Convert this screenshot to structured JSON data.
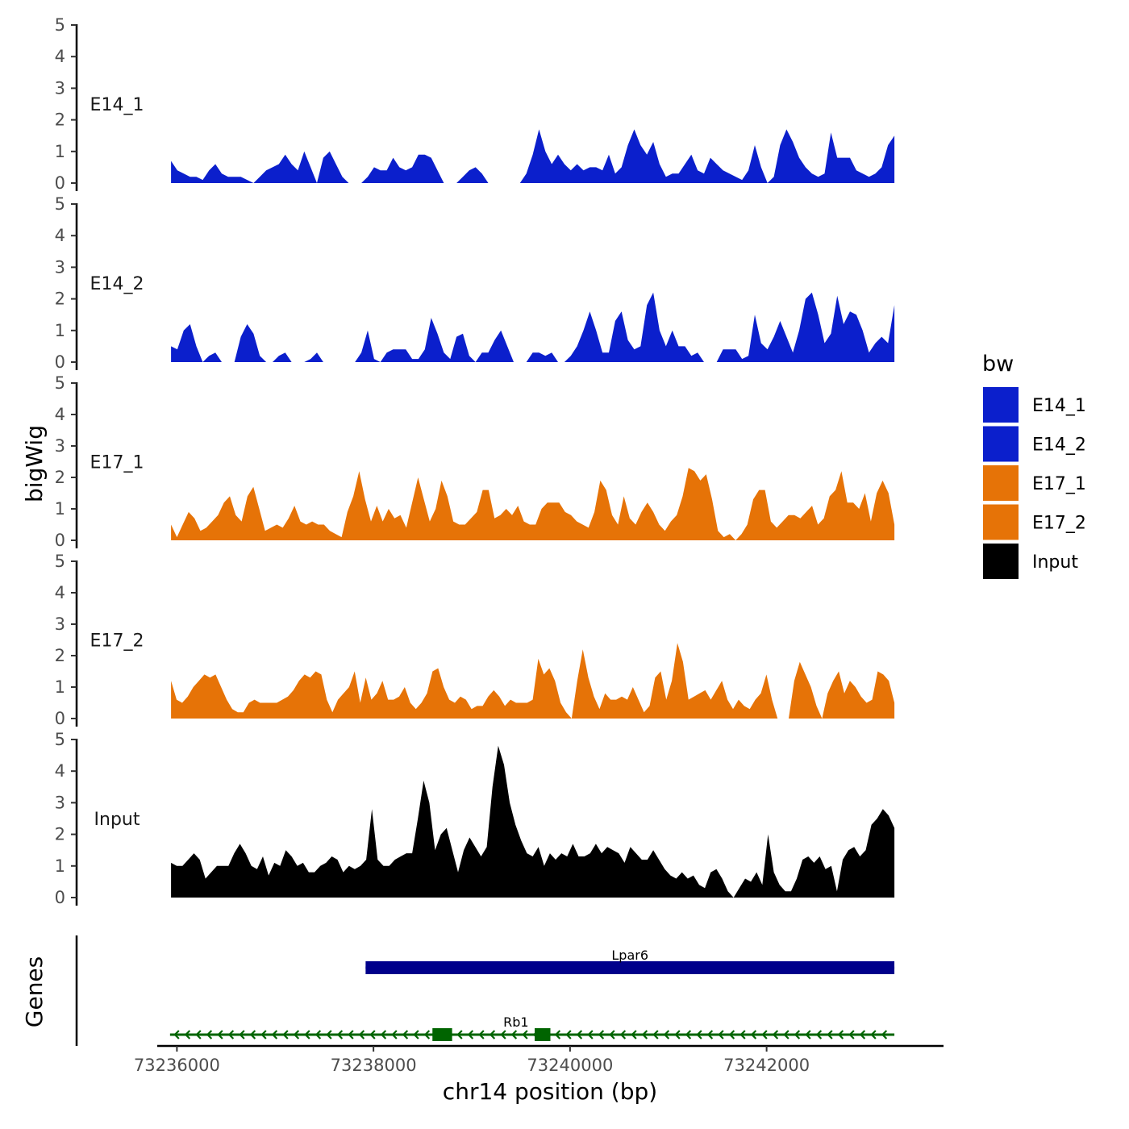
{
  "chart_data": {
    "type": "area",
    "chromosome": "chr14",
    "xlabel": "chr14 position (bp)",
    "ylabel": "bigWig",
    "genes_label": "Genes",
    "xlim": [
      73235800,
      73243800
    ],
    "x_ticks": [
      73236000,
      73238000,
      73240000,
      73242000
    ],
    "x_tick_labels": [
      "73236000",
      "73238000",
      "73240000",
      "73242000"
    ],
    "ylim": [
      0,
      5
    ],
    "y_ticks": [
      0,
      1,
      2,
      3,
      4,
      5
    ],
    "y_tick_labels": [
      "0",
      "1",
      "2",
      "3",
      "4",
      "5"
    ],
    "legend": {
      "title": "bw",
      "entries": [
        {
          "label": "E14_1",
          "color": "#0B1FCC"
        },
        {
          "label": "E14_2",
          "color": "#0B1FCC"
        },
        {
          "label": "E17_1",
          "color": "#E67307"
        },
        {
          "label": "E17_2",
          "color": "#E67307"
        },
        {
          "label": "Input",
          "color": "#000000"
        }
      ]
    },
    "x_start": 73235940,
    "x_end": 73243300,
    "series": [
      {
        "name": "E14_1",
        "color": "#0B1FCC",
        "values": [
          0.7,
          0.4,
          0.3,
          0.2,
          0.2,
          0.1,
          0.4,
          0.6,
          0.3,
          0.2,
          0.2,
          0.2,
          0.1,
          0.0,
          0.2,
          0.4,
          0.5,
          0.6,
          0.9,
          0.6,
          0.4,
          1.0,
          0.5,
          0.0,
          0.8,
          1.0,
          0.6,
          0.2,
          0.0,
          0.0,
          0.0,
          0.2,
          0.5,
          0.4,
          0.4,
          0.8,
          0.5,
          0.4,
          0.5,
          0.9,
          0.9,
          0.8,
          0.4,
          0.0,
          0.0,
          0.0,
          0.2,
          0.4,
          0.5,
          0.3,
          0.0,
          0.0,
          0.0,
          0.0,
          0.0,
          0.0,
          0.3,
          0.9,
          1.7,
          1.0,
          0.6,
          0.9,
          0.6,
          0.4,
          0.6,
          0.4,
          0.5,
          0.5,
          0.4,
          0.9,
          0.3,
          0.5,
          1.2,
          1.7,
          1.2,
          0.9,
          1.3,
          0.6,
          0.2,
          0.3,
          0.3,
          0.6,
          0.9,
          0.4,
          0.3,
          0.8,
          0.6,
          0.4,
          0.3,
          0.2,
          0.1,
          0.4,
          1.2,
          0.5,
          0.0,
          0.2,
          1.2,
          1.7,
          1.3,
          0.8,
          0.5,
          0.3,
          0.2,
          0.3,
          1.6,
          0.8,
          0.8,
          0.8,
          0.4,
          0.3,
          0.2,
          0.3,
          0.5,
          1.2,
          1.5
        ]
      },
      {
        "name": "E14_2",
        "color": "#0B1FCC",
        "values": [
          0.5,
          0.4,
          1.0,
          1.2,
          0.5,
          0.0,
          0.2,
          0.3,
          0.0,
          0.0,
          0.0,
          0.8,
          1.2,
          0.9,
          0.2,
          0.0,
          0.0,
          0.2,
          0.3,
          0.0,
          0.0,
          0.0,
          0.1,
          0.3,
          0.0,
          0.0,
          0.0,
          0.0,
          0.0,
          0.0,
          0.3,
          1.0,
          0.1,
          0.0,
          0.3,
          0.4,
          0.4,
          0.4,
          0.1,
          0.1,
          0.4,
          1.4,
          0.9,
          0.3,
          0.1,
          0.8,
          0.9,
          0.2,
          0.0,
          0.3,
          0.3,
          0.7,
          1.0,
          0.5,
          0.0,
          0.0,
          0.0,
          0.3,
          0.3,
          0.2,
          0.3,
          0.0,
          0.0,
          0.2,
          0.5,
          1.0,
          1.6,
          1.0,
          0.3,
          0.3,
          1.3,
          1.6,
          0.7,
          0.4,
          0.5,
          1.8,
          2.2,
          1.0,
          0.5,
          1.0,
          0.5,
          0.5,
          0.2,
          0.3,
          0.0,
          0.0,
          0.0,
          0.4,
          0.4,
          0.4,
          0.1,
          0.2,
          1.5,
          0.6,
          0.4,
          0.8,
          1.3,
          0.8,
          0.3,
          1.0,
          2.0,
          2.2,
          1.5,
          0.6,
          0.9,
          2.1,
          1.2,
          1.6,
          1.5,
          1.0,
          0.3,
          0.6,
          0.8,
          0.6,
          1.8
        ]
      },
      {
        "name": "E17_1",
        "color": "#E67307",
        "values": [
          0.5,
          0.1,
          0.5,
          0.9,
          0.7,
          0.3,
          0.4,
          0.6,
          0.8,
          1.2,
          1.4,
          0.8,
          0.6,
          1.4,
          1.7,
          1.0,
          0.3,
          0.4,
          0.5,
          0.4,
          0.7,
          1.1,
          0.6,
          0.5,
          0.6,
          0.5,
          0.5,
          0.3,
          0.2,
          0.1,
          0.9,
          1.4,
          2.2,
          1.3,
          0.6,
          1.1,
          0.6,
          1.0,
          0.7,
          0.8,
          0.4,
          1.2,
          2.0,
          1.3,
          0.6,
          1.0,
          1.9,
          1.4,
          0.6,
          0.5,
          0.5,
          0.7,
          0.9,
          1.6,
          1.6,
          0.7,
          0.8,
          1.0,
          0.8,
          1.1,
          0.6,
          0.5,
          0.5,
          1.0,
          1.2,
          1.2,
          1.2,
          0.9,
          0.8,
          0.6,
          0.5,
          0.4,
          0.9,
          1.9,
          1.6,
          0.8,
          0.5,
          1.4,
          0.7,
          0.5,
          0.9,
          1.2,
          0.9,
          0.5,
          0.3,
          0.6,
          0.8,
          1.4,
          2.3,
          2.2,
          1.9,
          2.1,
          1.3,
          0.3,
          0.1,
          0.2,
          0.0,
          0.2,
          0.5,
          1.3,
          1.6,
          1.6,
          0.6,
          0.4,
          0.6,
          0.8,
          0.8,
          0.7,
          0.9,
          1.1,
          0.5,
          0.7,
          1.4,
          1.6,
          2.2,
          1.2,
          1.2,
          1.0,
          1.5,
          0.6,
          1.5,
          1.9,
          1.5,
          0.5
        ]
      },
      {
        "name": "E17_2",
        "color": "#E67307",
        "values": [
          1.2,
          0.6,
          0.5,
          0.7,
          1.0,
          1.2,
          1.4,
          1.3,
          1.4,
          1.0,
          0.6,
          0.3,
          0.2,
          0.2,
          0.5,
          0.6,
          0.5,
          0.5,
          0.5,
          0.5,
          0.6,
          0.7,
          0.9,
          1.2,
          1.4,
          1.3,
          1.5,
          1.4,
          0.6,
          0.2,
          0.6,
          0.8,
          1.0,
          1.5,
          0.5,
          1.3,
          0.6,
          0.8,
          1.2,
          0.6,
          0.6,
          0.7,
          1.0,
          0.5,
          0.3,
          0.5,
          0.8,
          1.5,
          1.6,
          1.0,
          0.6,
          0.5,
          0.7,
          0.6,
          0.3,
          0.4,
          0.4,
          0.7,
          0.9,
          0.7,
          0.4,
          0.6,
          0.5,
          0.5,
          0.5,
          0.6,
          1.9,
          1.4,
          1.6,
          1.2,
          0.5,
          0.2,
          0.0,
          1.2,
          2.2,
          1.3,
          0.7,
          0.3,
          0.8,
          0.6,
          0.6,
          0.7,
          0.6,
          1.0,
          0.6,
          0.2,
          0.4,
          1.3,
          1.5,
          0.6,
          1.2,
          2.4,
          1.8,
          0.6,
          0.7,
          0.8,
          0.9,
          0.6,
          0.9,
          1.2,
          0.6,
          0.3,
          0.6,
          0.4,
          0.3,
          0.6,
          0.8,
          1.4,
          0.6,
          0.0,
          0.0,
          0.0,
          1.2,
          1.8,
          1.4,
          1.0,
          0.4,
          0.0,
          0.8,
          1.2,
          1.5,
          0.8,
          1.2,
          1.0,
          0.7,
          0.5,
          0.6,
          1.5,
          1.4,
          1.2,
          0.5
        ]
      },
      {
        "name": "Input",
        "color": "#000000",
        "values": [
          1.1,
          1.0,
          1.0,
          1.2,
          1.4,
          1.2,
          0.6,
          0.8,
          1.0,
          1.0,
          1.0,
          1.4,
          1.7,
          1.4,
          1.0,
          0.9,
          1.3,
          0.7,
          1.1,
          1.0,
          1.5,
          1.3,
          1.0,
          1.1,
          0.8,
          0.8,
          1.0,
          1.1,
          1.3,
          1.2,
          0.8,
          1.0,
          0.9,
          1.0,
          1.2,
          2.8,
          1.2,
          1.0,
          1.0,
          1.2,
          1.3,
          1.4,
          1.4,
          2.5,
          3.7,
          3.0,
          1.5,
          2.0,
          2.2,
          1.5,
          0.8,
          1.5,
          1.9,
          1.6,
          1.3,
          1.6,
          3.5,
          4.8,
          4.2,
          3.0,
          2.3,
          1.8,
          1.4,
          1.3,
          1.6,
          1.0,
          1.4,
          1.2,
          1.4,
          1.3,
          1.7,
          1.3,
          1.3,
          1.4,
          1.7,
          1.4,
          1.6,
          1.5,
          1.4,
          1.1,
          1.6,
          1.4,
          1.2,
          1.2,
          1.5,
          1.2,
          0.9,
          0.7,
          0.6,
          0.8,
          0.6,
          0.7,
          0.4,
          0.3,
          0.8,
          0.9,
          0.6,
          0.2,
          0.0,
          0.3,
          0.6,
          0.5,
          0.8,
          0.4,
          2.0,
          0.8,
          0.4,
          0.2,
          0.2,
          0.6,
          1.2,
          1.3,
          1.1,
          1.3,
          0.9,
          1.0,
          0.2,
          1.2,
          1.5,
          1.6,
          1.3,
          1.5,
          2.3,
          2.5,
          2.8,
          2.6,
          2.2
        ]
      }
    ],
    "genes": [
      {
        "name": "Lpar6",
        "start": 73237920,
        "end": 73243300,
        "strand": "+",
        "color": "#00008B",
        "exons": [
          [
            73237920,
            73243300
          ]
        ]
      },
      {
        "name": "Rb1",
        "start": 73235930,
        "end": 73243300,
        "strand": "-",
        "color": "#006400",
        "exons": [
          [
            73238600,
            73238800
          ],
          [
            73239640,
            73239800
          ]
        ]
      }
    ]
  }
}
